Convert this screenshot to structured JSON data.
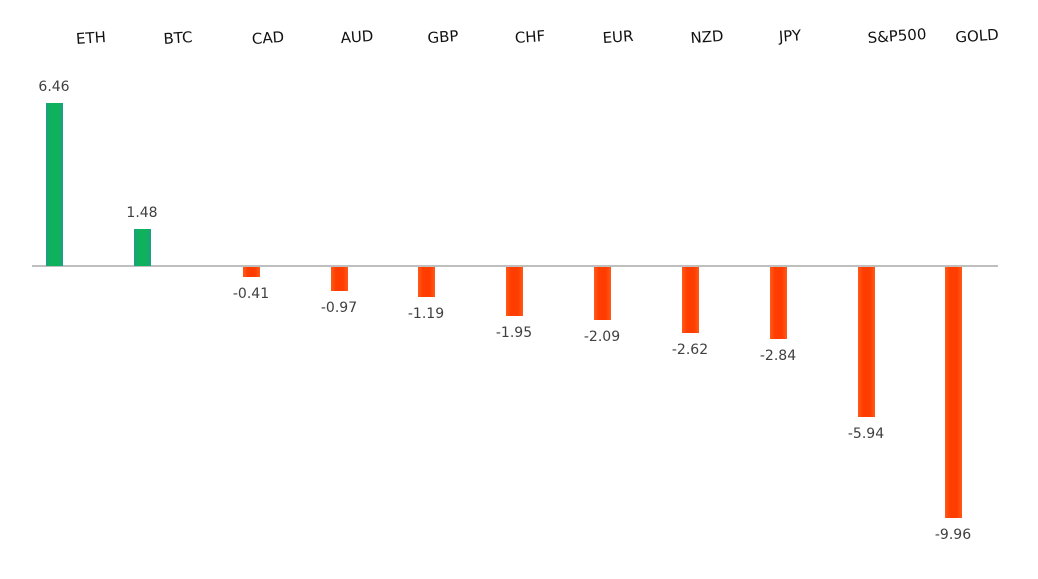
{
  "chart_data": {
    "type": "bar",
    "title": "",
    "xlabel": "",
    "ylabel": "",
    "categories": [
      "ETH",
      "BTC",
      "CAD",
      "AUD",
      "GBP",
      "CHF",
      "EUR",
      "NZD",
      "JPY",
      "S&P500",
      "GOLD"
    ],
    "values": [
      6.46,
      1.48,
      -0.41,
      -0.97,
      -1.19,
      -1.95,
      -2.09,
      -2.62,
      -2.84,
      -5.94,
      -9.96
    ],
    "value_labels": [
      "6.46",
      "1.48",
      "-0.41",
      "-0.97",
      "-1.19",
      "-1.95",
      "-2.09",
      "-2.62",
      "-2.84",
      "-5.94",
      "-9.96"
    ],
    "ylim": [
      -10,
      7
    ],
    "grid": false,
    "legend": null,
    "category_axis_position": "top",
    "colors": {
      "positive": "#10b15c",
      "negative": "#ff3d00",
      "axis": "#bfbfbf"
    }
  }
}
